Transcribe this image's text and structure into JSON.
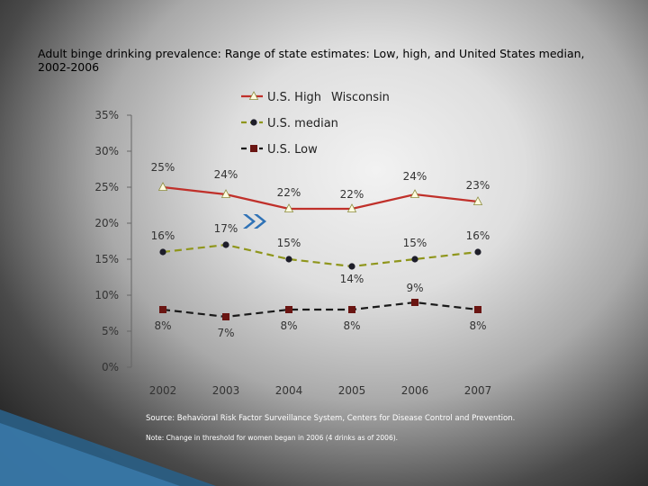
{
  "title": "Adult binge drinking prevalence: Range of state estimates: Low, high, and United States median, 2002-2006",
  "source": "Source: Behavioral Risk Factor Surveillance System, Centers for Disease Control and Prevention.",
  "note": "Note: Change in threshold for women began in 2006 (4 drinks as of 2006).",
  "chart_data": {
    "type": "line",
    "x": [
      "2002",
      "2003",
      "2004",
      "2005",
      "2006",
      "2007"
    ],
    "ylim": [
      0,
      35
    ],
    "yticks": [
      "0%",
      "5%",
      "10%",
      "15%",
      "20%",
      "25%",
      "30%",
      "35%"
    ],
    "series": [
      {
        "name": "U.S. High",
        "annotation": "Wisconsin",
        "values": [
          25,
          24,
          22,
          22,
          24,
          23
        ],
        "labels": [
          "25%",
          "24%",
          "22%",
          "22%",
          "24%",
          "23%"
        ],
        "color": "#c0302a",
        "marker": "triangle"
      },
      {
        "name": "U.S. median",
        "values": [
          16,
          17,
          15,
          14,
          15,
          16
        ],
        "labels": [
          "16%",
          "17%",
          "15%",
          "14%",
          "15%",
          "16%"
        ],
        "color": "#8f961c",
        "marker": "circle"
      },
      {
        "name": "U.S. Low",
        "values": [
          8,
          7,
          8,
          8,
          9,
          8
        ],
        "labels": [
          "8%",
          "7%",
          "8%",
          "8%",
          "9%",
          "8%"
        ],
        "color": "#1a1a1a",
        "marker": "square"
      }
    ],
    "arrow_color": "#2f72b6"
  }
}
